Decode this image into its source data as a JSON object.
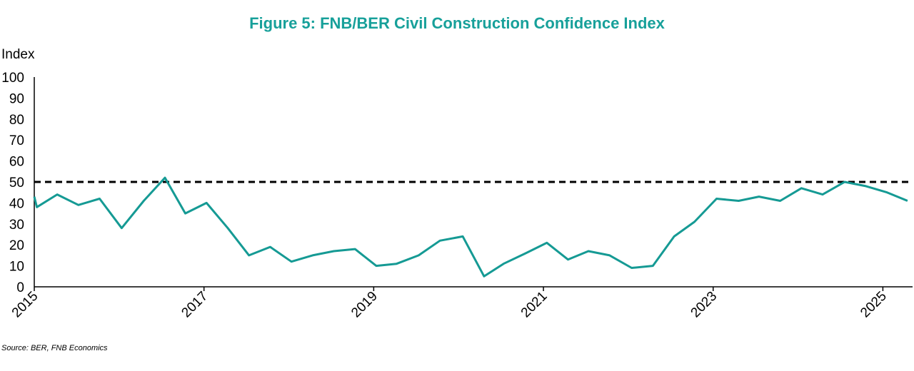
{
  "chart_data": {
    "type": "line",
    "title": "Figure 5: FNB/BER Civil Construction Confidence Index",
    "y_label": "Index",
    "source": "Source: BER, FNB Economics",
    "x": [
      2015.0,
      2015.03,
      2015.27,
      2015.52,
      2015.77,
      2016.03,
      2016.29,
      2016.54,
      2016.78,
      2017.03,
      2017.28,
      2017.53,
      2017.78,
      2018.03,
      2018.28,
      2018.53,
      2018.78,
      2019.03,
      2019.27,
      2019.53,
      2019.78,
      2020.05,
      2020.3,
      2020.53,
      2020.79,
      2021.04,
      2021.29,
      2021.53,
      2021.78,
      2022.04,
      2022.29,
      2022.54,
      2022.78,
      2023.04,
      2023.3,
      2023.54,
      2023.79,
      2024.04,
      2024.29,
      2024.55,
      2024.8,
      2025.05,
      2025.29
    ],
    "series": [
      {
        "name": "Civil Construction Confidence Index",
        "color": "#159a94",
        "values": [
          43,
          38,
          44,
          39,
          42,
          28,
          41,
          52,
          35,
          40,
          28,
          15,
          19,
          12,
          15,
          17,
          18,
          10,
          11,
          15,
          22,
          24,
          5,
          11,
          16,
          21,
          13,
          17,
          15,
          9,
          10,
          24,
          31,
          42,
          41,
          43,
          41,
          47,
          44,
          50,
          48,
          45,
          41
        ]
      }
    ],
    "reference_line": {
      "value": 50,
      "color": "#000000",
      "style": "dashed"
    },
    "xlim": [
      2015,
      2025.35
    ],
    "xticks": [
      2015,
      2017,
      2019,
      2021,
      2023,
      2025
    ],
    "ylim": [
      0,
      100
    ],
    "yticks": [
      0,
      10,
      20,
      30,
      40,
      50,
      60,
      70,
      80,
      90,
      100
    ],
    "grid": false
  }
}
